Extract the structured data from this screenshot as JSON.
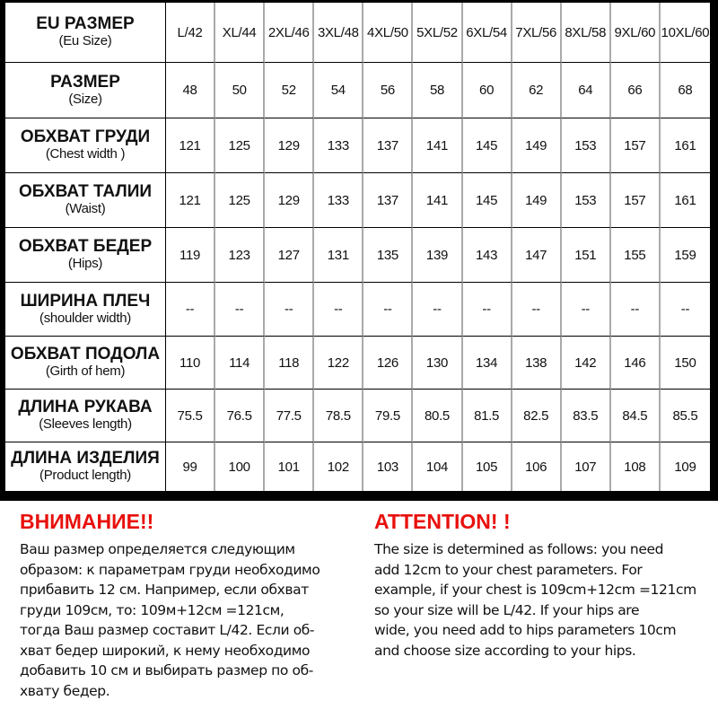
{
  "columns": [
    "L/42",
    "XL/44",
    "2XL/46",
    "3XL/48",
    "4XL/50",
    "5XL/52",
    "6XL/54",
    "7XL/56",
    "8XL/58",
    "9XL/60",
    "10XL/60"
  ],
  "rows": [
    {
      "ru": "EU РАЗМЕР",
      "en": "(Eu Size)",
      "header": true
    },
    {
      "ru": "РАЗМЕР",
      "en": "(Size)",
      "values": [
        "48",
        "50",
        "52",
        "54",
        "56",
        "58",
        "60",
        "62",
        "64",
        "66",
        "68"
      ]
    },
    {
      "ru": "ОБХВАТ ГРУДИ",
      "en": "(Chest width )",
      "values": [
        "121",
        "125",
        "129",
        "133",
        "137",
        "141",
        "145",
        "149",
        "153",
        "157",
        "161"
      ]
    },
    {
      "ru": "ОБХВАТ ТАЛИИ",
      "en": "(Waist)",
      "values": [
        "121",
        "125",
        "129",
        "133",
        "137",
        "141",
        "145",
        "149",
        "153",
        "157",
        "161"
      ]
    },
    {
      "ru": "ОБХВАТ БЕДЕР",
      "en": "(Hips)",
      "values": [
        "119",
        "123",
        "127",
        "131",
        "135",
        "139",
        "143",
        "147",
        "151",
        "155",
        "159"
      ]
    },
    {
      "ru": "ШИРИНА ПЛЕЧ",
      "en": "(shoulder width)",
      "values": [
        "--",
        "--",
        "--",
        "--",
        "--",
        "--",
        "--",
        "--",
        "--",
        "--",
        "--"
      ]
    },
    {
      "ru": "ОБХВАТ ПОДОЛА",
      "en": "(Girth of hem)",
      "values": [
        "110",
        "114",
        "118",
        "122",
        "126",
        "130",
        "134",
        "138",
        "142",
        "146",
        "150"
      ]
    },
    {
      "ru": "ДЛИНА РУКАВА",
      "en": "(Sleeves length)",
      "values": [
        "75.5",
        "76.5",
        "77.5",
        "78.5",
        "79.5",
        "80.5",
        "81.5",
        "82.5",
        "83.5",
        "84.5",
        "85.5"
      ]
    },
    {
      "ru": "ДЛИНА ИЗДЕЛИЯ",
      "en": "(Product length)",
      "values": [
        "99",
        "100",
        "101",
        "102",
        "103",
        "104",
        "105",
        "106",
        "107",
        "108",
        "109"
      ]
    }
  ],
  "notes": {
    "ru": {
      "title": "ВНИМАНИЕ!!",
      "lines": [
        "Ваш размер определяется следующим",
        "образом: к параметрам груди необходимо",
        "прибавить 12 см. Например, если обхват",
        "груди  109см, то: 109м+12см =121см,",
        "тогда Ваш размер составит L/42. Если об-",
        "хват бедер широкий, к нему необходимо",
        "добавить 10 см и выбирать размер по об-",
        "хвату бедер."
      ]
    },
    "en": {
      "title": "ATTENTION! !",
      "lines": [
        "The size is determined as follows: you need",
        "add 12cm to your chest parameters. For",
        "example, if your chest is 109cm+12cm =121cm",
        "so your size will be L/42. If your hips are",
        "wide, you need add to hips parameters 10cm",
        "and choose size according to your hips."
      ]
    }
  },
  "colors": {
    "accent": "#e8100c",
    "frame": "#000000",
    "grid": "#aaaaaa"
  }
}
